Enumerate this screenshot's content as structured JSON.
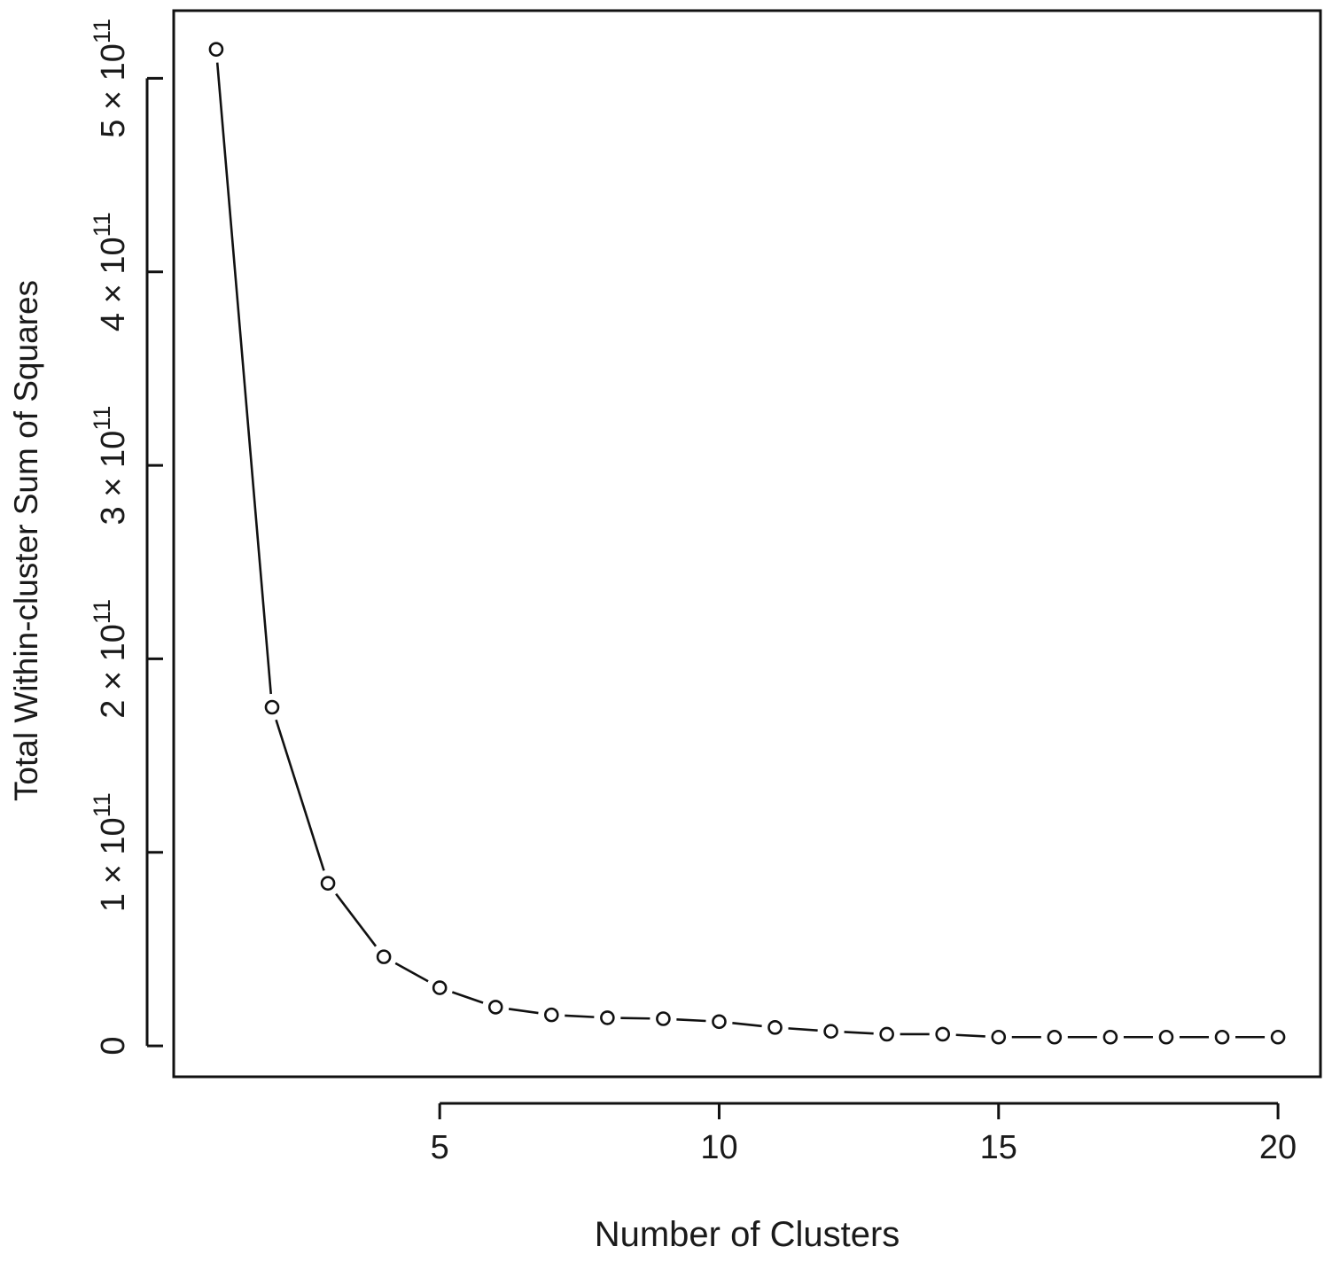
{
  "chart_data": {
    "type": "line",
    "xlabel": "Number of Clusters",
    "ylabel": "Total Within-cluster Sum of Squares",
    "x_ticks": [
      "5",
      "10",
      "15",
      "20"
    ],
    "x_tick_values": [
      5,
      10,
      15,
      20
    ],
    "y_tick_values": [
      0,
      100000000000,
      200000000000,
      300000000000,
      400000000000,
      500000000000
    ],
    "y_tick_labels": [
      {
        "main": "0",
        "sup": ""
      },
      {
        "main": "1 × 10",
        "sup": "11"
      },
      {
        "main": "2 × 10",
        "sup": "11"
      },
      {
        "main": "3 × 10",
        "sup": "11"
      },
      {
        "main": "4 × 10",
        "sup": "11"
      },
      {
        "main": "5 × 10",
        "sup": "11"
      }
    ],
    "xlim": [
      0.24,
      20.76
    ],
    "ylim": [
      -16000000000,
      535000000000
    ],
    "grid": false,
    "legend": "none",
    "line_style": "b",
    "series": [
      {
        "x": [
          1,
          2,
          3,
          4,
          5,
          6,
          7,
          8,
          9,
          10,
          11,
          12,
          13,
          14,
          15,
          16,
          17,
          18,
          19,
          20
        ],
        "values": [
          515000000000,
          175000000000,
          84000000000,
          46000000000,
          30000000000,
          20000000000,
          16000000000,
          14500000000,
          14000000000,
          12500000000,
          9500000000,
          7500000000,
          6000000000,
          6000000000,
          4500000000,
          4500000000,
          4500000000,
          4500000000,
          4500000000,
          4500000000
        ]
      }
    ]
  }
}
